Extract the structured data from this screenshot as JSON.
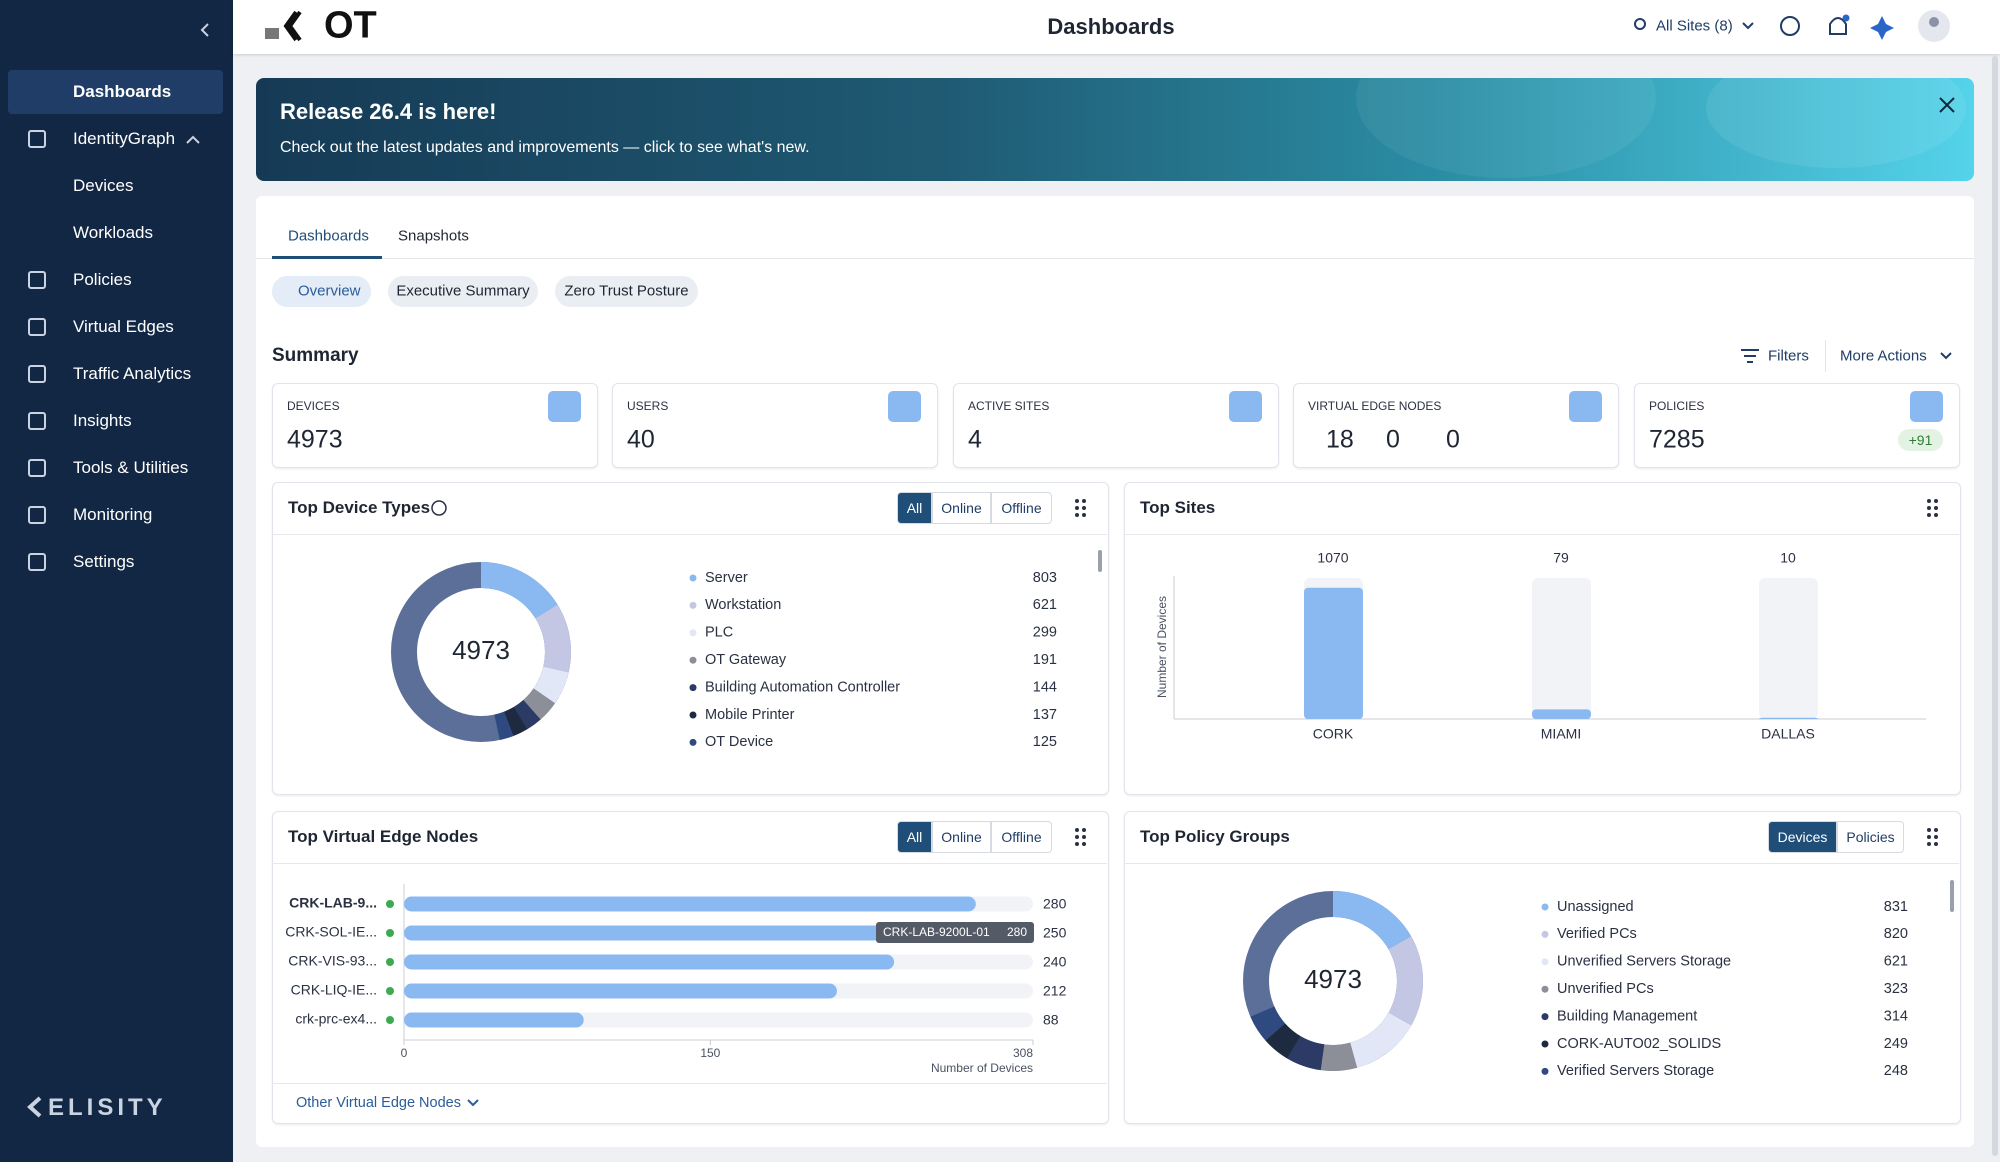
{
  "sidebar": {
    "items": [
      {
        "label": "Dashboards"
      },
      {
        "label": "IdentityGraph",
        "children": [
          "Devices",
          "Workloads"
        ]
      },
      {
        "label": "Policies"
      },
      {
        "label": "Virtual Edges"
      },
      {
        "label": "Traffic Analytics"
      },
      {
        "label": "Insights"
      },
      {
        "label": "Tools & Utilities"
      },
      {
        "label": "Monitoring"
      },
      {
        "label": "Settings"
      }
    ],
    "brand": "ELISITY"
  },
  "header": {
    "logo": "OT",
    "title": "Dashboards",
    "site_selector": "All Sites (8)"
  },
  "banner": {
    "title": "Release 26.4 is here!",
    "text": "Check out the latest updates and improvements — click to see what's new."
  },
  "tabs": [
    "Dashboards",
    "Snapshots"
  ],
  "chips": [
    "Overview",
    "Executive Summary",
    "Zero Trust Posture"
  ],
  "summary": {
    "title": "Summary",
    "filters": "Filters",
    "more_actions": "More Actions",
    "cards": [
      {
        "label": "DEVICES",
        "value": 4973
      },
      {
        "label": "USERS",
        "value": 40
      },
      {
        "label": "ACTIVE SITES",
        "value": 4
      },
      {
        "label": "VIRTUAL EDGE NODES",
        "values": [
          18,
          0,
          0
        ]
      },
      {
        "label": "POLICIES",
        "value": 7285,
        "badge": "+91"
      }
    ]
  },
  "device_types": {
    "title": "Top Device Types",
    "filters": [
      "All",
      "Online",
      "Offline"
    ],
    "total": 4973,
    "items": [
      {
        "name": "Server",
        "value": 803,
        "color": "#8ab9f1"
      },
      {
        "name": "Workstation",
        "value": 621,
        "color": "#c3c7e3"
      },
      {
        "name": "PLC",
        "value": 299,
        "color": "#e1e7f7"
      },
      {
        "name": "OT Gateway",
        "value": 191,
        "color": "#8d8f98"
      },
      {
        "name": "Building Automation Controller",
        "value": 144,
        "color": "#2c3a66"
      },
      {
        "name": "Mobile Printer",
        "value": 137,
        "color": "#1e2a3f"
      },
      {
        "name": "OT Device",
        "value": 125,
        "color": "#2f4a80"
      }
    ]
  },
  "top_sites": {
    "title": "Top Sites",
    "y_label": "Number of Devices",
    "categories": [
      "CORK",
      "MIAMI",
      "DALLAS"
    ],
    "values": [
      1070,
      79,
      10
    ],
    "ylim": [
      0,
      1150
    ],
    "color": "#8ab9f1"
  },
  "ve_nodes": {
    "title": "Top Virtual Edge Nodes",
    "filters": [
      "All",
      "Online",
      "Offline"
    ],
    "labels": [
      "CRK-LAB-9...",
      "CRK-SOL-IE...",
      "CRK-VIS-93...",
      "CRK-LIQ-IE...",
      "crk-prc-ex4..."
    ],
    "values": [
      280,
      250,
      240,
      212,
      88
    ],
    "xlim": [
      0,
      308
    ],
    "xticks": [
      0,
      150,
      308
    ],
    "x_label": "Number of Devices",
    "color": "#8ab9f1",
    "tooltip": {
      "name": "CRK-LAB-9200L-01",
      "value": 280
    },
    "footer_link": "Other Virtual Edge Nodes"
  },
  "policy_groups": {
    "title": "Top Policy Groups",
    "toggles": [
      "Devices",
      "Policies"
    ],
    "total": 4973,
    "items": [
      {
        "name": "Unassigned",
        "value": 831,
        "color": "#8ab9f1"
      },
      {
        "name": "Verified PCs",
        "value": 820,
        "color": "#c3c7e3"
      },
      {
        "name": "Unverified Servers Storage",
        "value": 621,
        "color": "#e1e7f7"
      },
      {
        "name": "Unverified PCs",
        "value": 323,
        "color": "#8d8f98"
      },
      {
        "name": "Building Management",
        "value": 314,
        "color": "#2c3a66"
      },
      {
        "name": "CORK-AUTO02_SOLIDS",
        "value": 249,
        "color": "#1e2a3f"
      },
      {
        "name": "Verified Servers Storage",
        "value": 248,
        "color": "#2f4a80"
      }
    ]
  }
}
